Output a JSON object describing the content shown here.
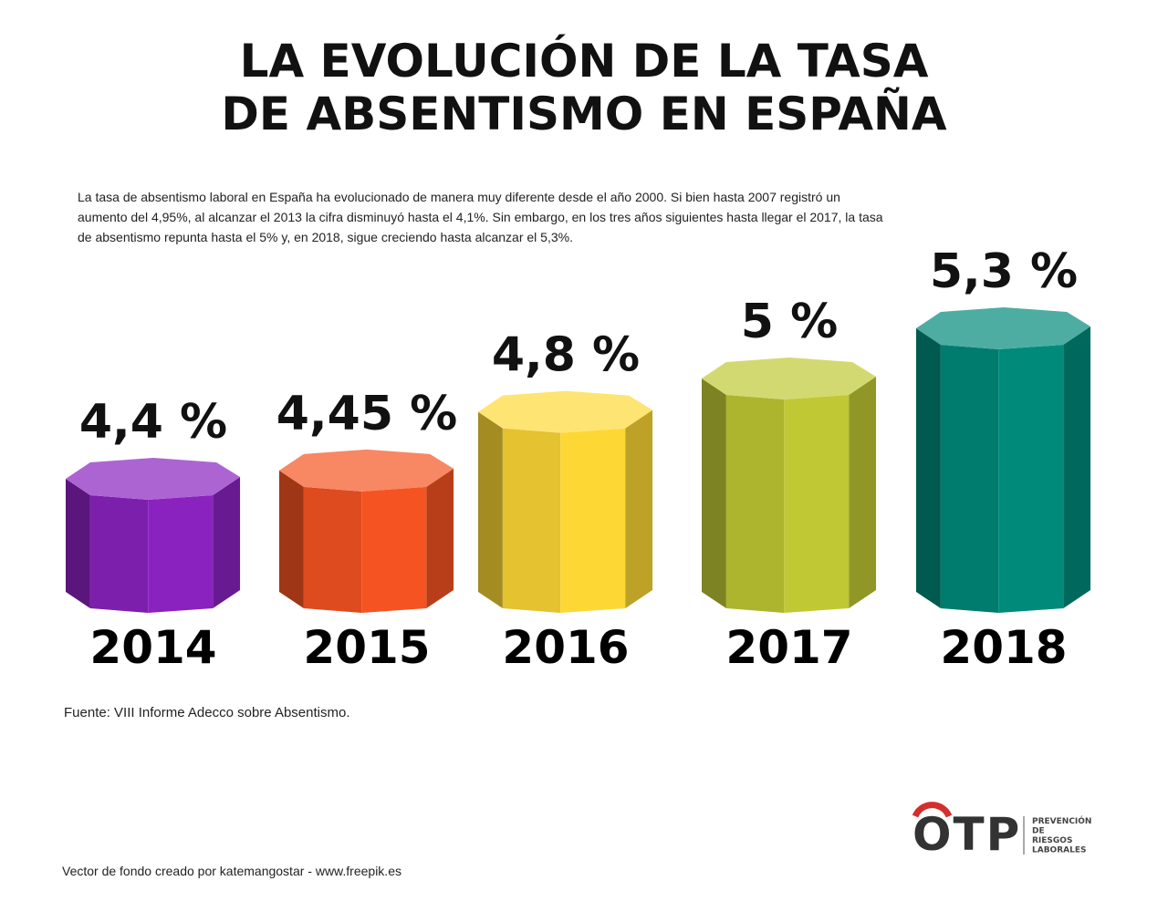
{
  "chart_data": {
    "type": "bar",
    "title": "LA EVOLUCIÓN DE LA TASA DE ABSENTISMO EN ESPAÑA",
    "subtitle": "La tasa de absentismo laboral en España ha evolucionado de manera muy diferente desde el año 2000. Si bien hasta 2007 registró un aumento del 4,95%, al alcanzar el 2013 la cifra disminuyó hasta el 4,1%. Sin embargo, en los tres años siguientes hasta llegar el 2017, la tasa de absentismo repunta hasta el 5% y, en 2018, sigue creciendo hasta alcanzar el 5,3%.",
    "categories": [
      "2014",
      "2015",
      "2016",
      "2017",
      "2018"
    ],
    "values": [
      4.4,
      4.45,
      4.8,
      5,
      5.3
    ],
    "value_labels": [
      "4,4 %",
      "4,45 %",
      "4,8 %",
      "5 %",
      "5,3 %"
    ],
    "colors": [
      "#8a22c0",
      "#f55322",
      "#fdd835",
      "#c0c934",
      "#008a7a"
    ],
    "source": "Fuente: VIII Informe Adecco sobre Absentismo."
  },
  "footer": {
    "credit": "Vector de fondo creado por katemangostar - www.freepik.es",
    "logo": "OTP",
    "tagline": [
      "PREVENCIÓN",
      "DE",
      "RIESGOS",
      "LABORALES"
    ]
  }
}
